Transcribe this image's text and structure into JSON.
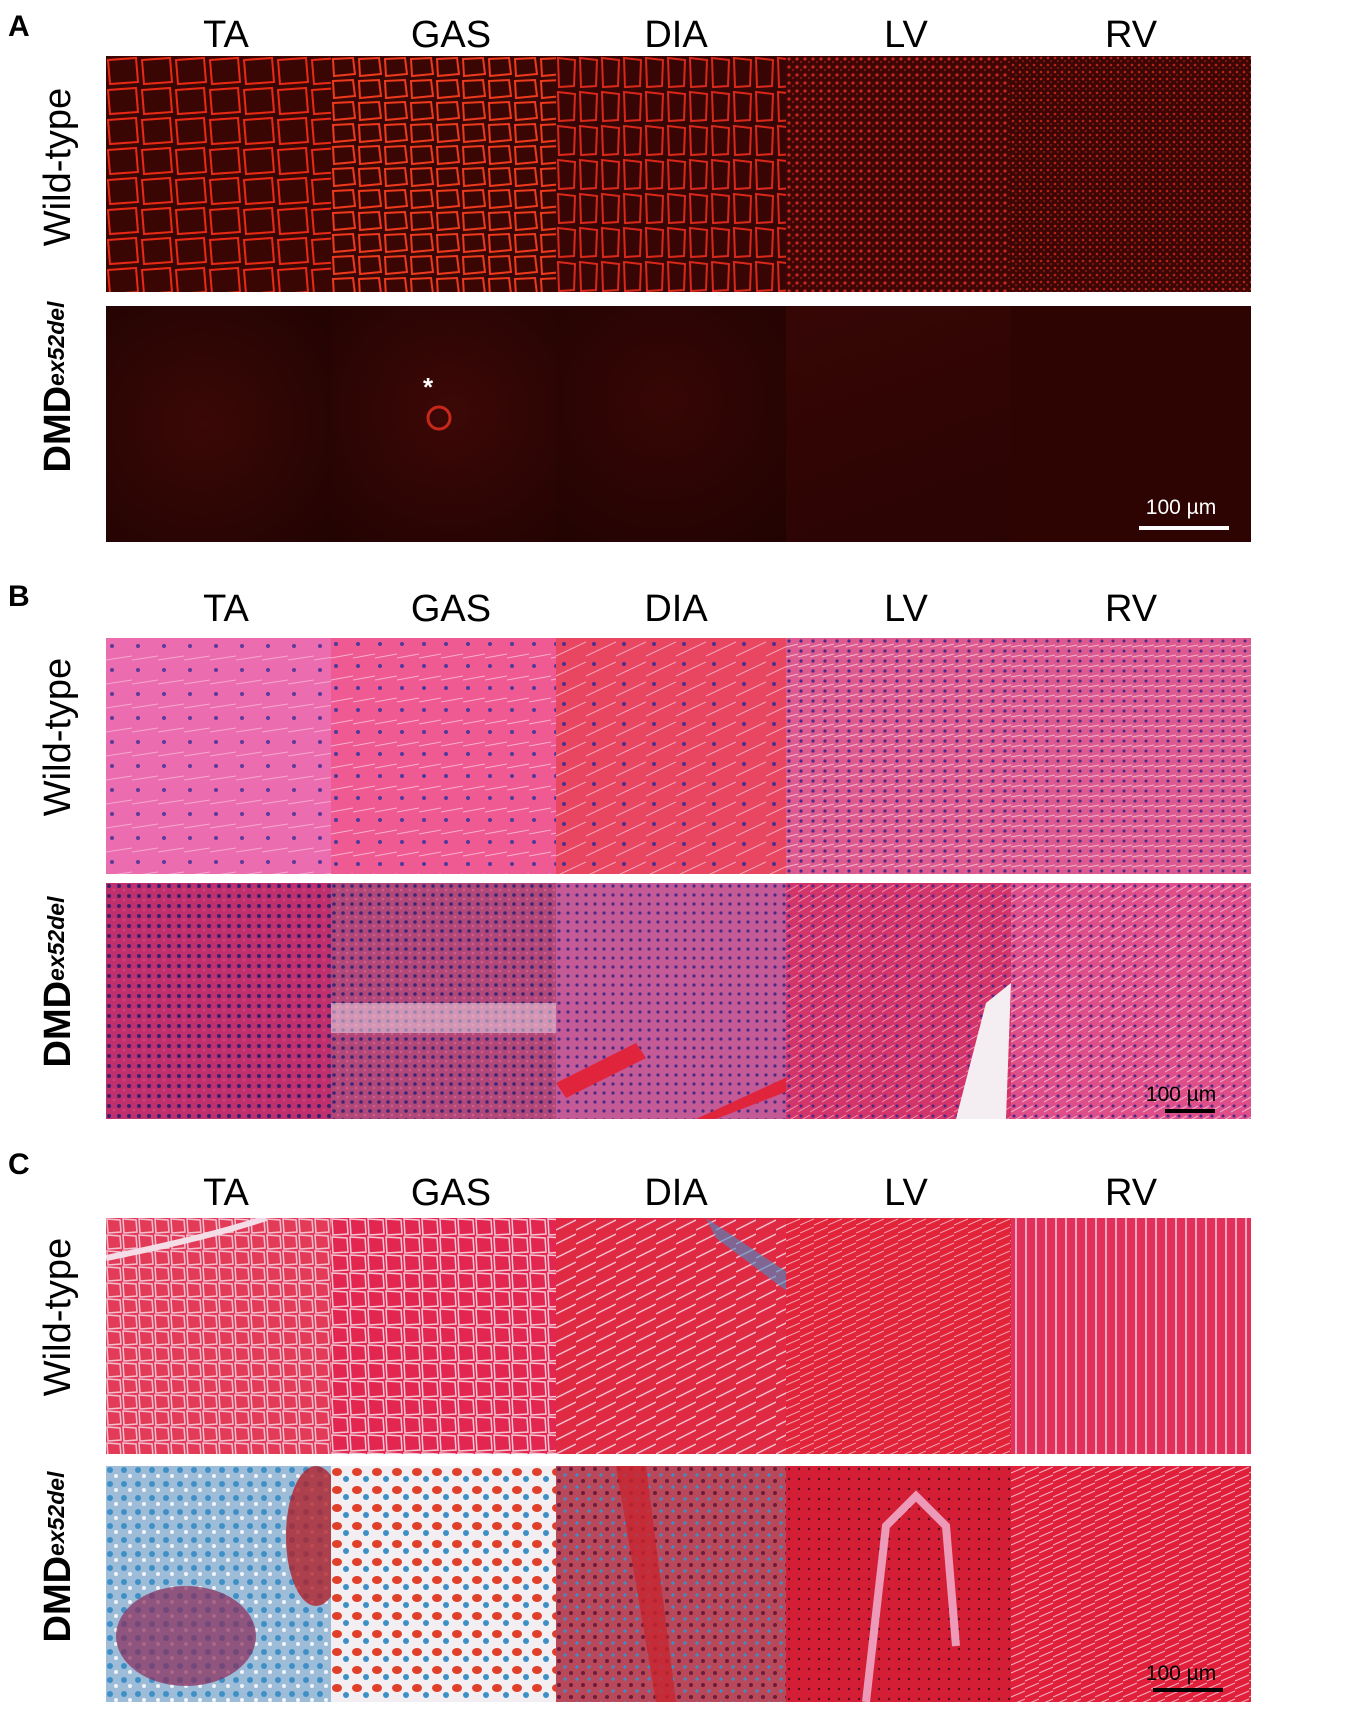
{
  "figure": {
    "columns": [
      "TA",
      "GAS",
      "DIA",
      "LV",
      "RV"
    ],
    "rows": {
      "wild_type": "Wild-type",
      "dmd_base": "DMD",
      "dmd_sup": "ex52del"
    },
    "scale_label": "100 µm",
    "asterisk": "*",
    "panels": [
      {
        "letter": "A",
        "stain": "immunofluorescence",
        "palette": {
          "bg": "#3a0604",
          "mark": "#e82a14",
          "dim_bg": "#2c0504"
        }
      },
      {
        "letter": "B",
        "stain": "H&E",
        "palette": {
          "bg": "#e84f90",
          "mark": "#5b3a9c",
          "dim_bg": "#d8407e"
        }
      },
      {
        "letter": "C",
        "stain": "Masson trichrome",
        "palette": {
          "bg": "#e22a48",
          "mark": "#3f8fc7",
          "dim_bg": "#f3e8ee"
        }
      }
    ]
  }
}
